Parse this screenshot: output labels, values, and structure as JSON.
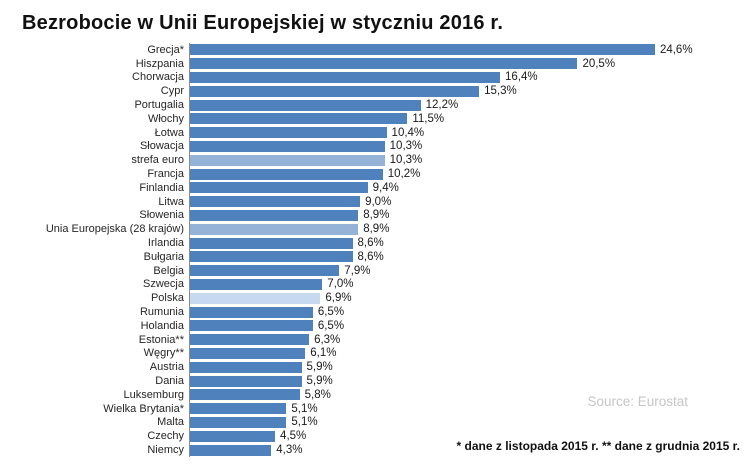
{
  "title": "Bezrobocie w Unii Europejskiej w styczniu 2016 r.",
  "source_note": "Source: Eurostat",
  "footnote": "* dane z listopada 2015 r. ** dane z grudnia 2015 r.",
  "colors": {
    "bar_default": "#4f81bd",
    "bar_aggregate": "#95b3d7",
    "bar_poland": "#c6d9f1",
    "axis_line": "#8c8c8c",
    "source_text": "#c6c6c6"
  },
  "chart_data": {
    "type": "bar",
    "orientation": "horizontal",
    "title": "Bezrobocie w Unii Europejskiej w styczniu 2016 r.",
    "xlabel": "",
    "ylabel": "",
    "xlim": [
      0,
      26
    ],
    "grid": false,
    "legend": false,
    "value_suffix": "%",
    "categories": [
      "Grecja*",
      "Hiszpania",
      "Chorwacja",
      "Cypr",
      "Portugalia",
      "Włochy",
      "Łotwa",
      "Słowacja",
      "strefa euro",
      "Francja",
      "Finlandia",
      "Litwa",
      "Słowenia",
      "Unia Europejska (28 krajów)",
      "Irlandia",
      "Bułgaria",
      "Belgia",
      "Szwecja",
      "Polska",
      "Rumunia",
      "Holandia",
      "Estonia**",
      "Węgry**",
      "Austria",
      "Dania",
      "Luksemburg",
      "Wielka Brytania*",
      "Malta",
      "Czechy",
      "Niemcy"
    ],
    "values": [
      24.6,
      20.5,
      16.4,
      15.3,
      12.2,
      11.5,
      10.4,
      10.3,
      10.3,
      10.2,
      9.4,
      9.0,
      8.9,
      8.9,
      8.6,
      8.6,
      7.9,
      7.0,
      6.9,
      6.5,
      6.5,
      6.3,
      6.1,
      5.9,
      5.9,
      5.8,
      5.1,
      5.1,
      4.5,
      4.3
    ],
    "value_labels": [
      "24,6%",
      "20,5%",
      "16,4%",
      "15,3%",
      "12,2%",
      "11,5%",
      "10,4%",
      "10,3%",
      "10,3%",
      "10,2%",
      "9,4%",
      "9,0%",
      "8,9%",
      "8,9%",
      "8,6%",
      "8,6%",
      "7,9%",
      "7,0%",
      "6,9%",
      "6,5%",
      "6,5%",
      "6,3%",
      "6,1%",
      "5,9%",
      "5,9%",
      "5,8%",
      "5,1%",
      "5,1%",
      "4,5%",
      "4,3%"
    ],
    "bar_styles": [
      "default",
      "default",
      "default",
      "default",
      "default",
      "default",
      "default",
      "default",
      "aggregate",
      "default",
      "default",
      "default",
      "default",
      "aggregate",
      "default",
      "default",
      "default",
      "default",
      "poland",
      "default",
      "default",
      "default",
      "default",
      "default",
      "default",
      "default",
      "default",
      "default",
      "default",
      "default"
    ]
  }
}
